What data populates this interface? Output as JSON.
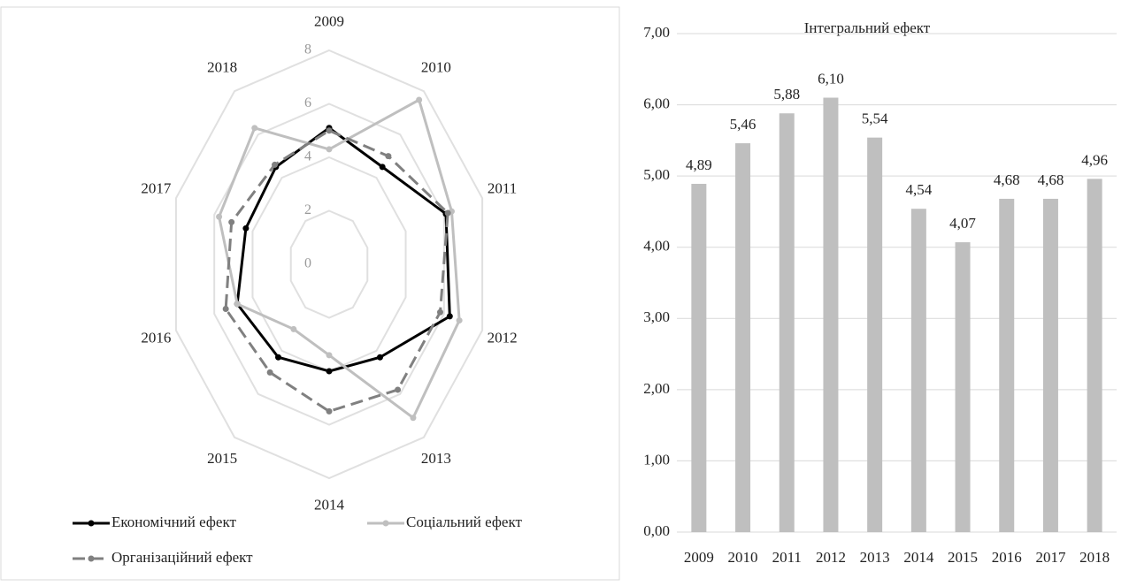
{
  "chart_data": [
    {
      "type": "radar",
      "categories": [
        "2009",
        "2010",
        "2011",
        "2012",
        "2013",
        "2014",
        "2015",
        "2016",
        "2017",
        "2018"
      ],
      "rlim": [
        0,
        8
      ],
      "rticks": [
        0,
        2,
        4,
        6,
        8
      ],
      "series": [
        {
          "name": "Економічний ефект",
          "color": "#000000",
          "style": "solid",
          "values": [
            5.1,
            4.5,
            6.1,
            6.3,
            4.3,
            4.0,
            4.3,
            4.8,
            4.35,
            4.5
          ]
        },
        {
          "name": "Соціальний ефект",
          "color": "#bfbfbf",
          "style": "solid",
          "values": [
            4.3,
            7.6,
            6.4,
            6.8,
            7.1,
            3.4,
            3.0,
            4.8,
            5.75,
            6.3
          ]
        },
        {
          "name": "Організаційний ефект",
          "color": "#808080",
          "style": "dashed",
          "values": [
            5.0,
            5.0,
            6.2,
            5.8,
            5.8,
            5.5,
            5.0,
            5.4,
            5.1,
            4.6
          ]
        }
      ]
    },
    {
      "type": "bar",
      "title": "Інтегральний ефект",
      "categories": [
        "2009",
        "2010",
        "2011",
        "2012",
        "2013",
        "2014",
        "2015",
        "2016",
        "2017",
        "2018"
      ],
      "values": [
        4.89,
        5.46,
        5.88,
        6.1,
        5.54,
        4.54,
        4.07,
        4.68,
        4.68,
        4.96
      ],
      "value_labels": [
        "4,89",
        "5,46",
        "5,88",
        "6,10",
        "5,54",
        "4,54",
        "4,07",
        "4,68",
        "4,68",
        "4,96"
      ],
      "color": "#bfbfbf",
      "grid": true,
      "ylim": [
        0,
        7
      ],
      "yticks": [
        {
          "value": 0,
          "label": "0,00"
        },
        {
          "value": 1,
          "label": "1,00"
        },
        {
          "value": 2,
          "label": "2,00"
        },
        {
          "value": 3,
          "label": "3,00"
        },
        {
          "value": 4,
          "label": "4,00"
        },
        {
          "value": 5,
          "label": "5,00"
        },
        {
          "value": 6,
          "label": "6,00"
        },
        {
          "value": 7,
          "label": "7,00"
        }
      ]
    }
  ]
}
